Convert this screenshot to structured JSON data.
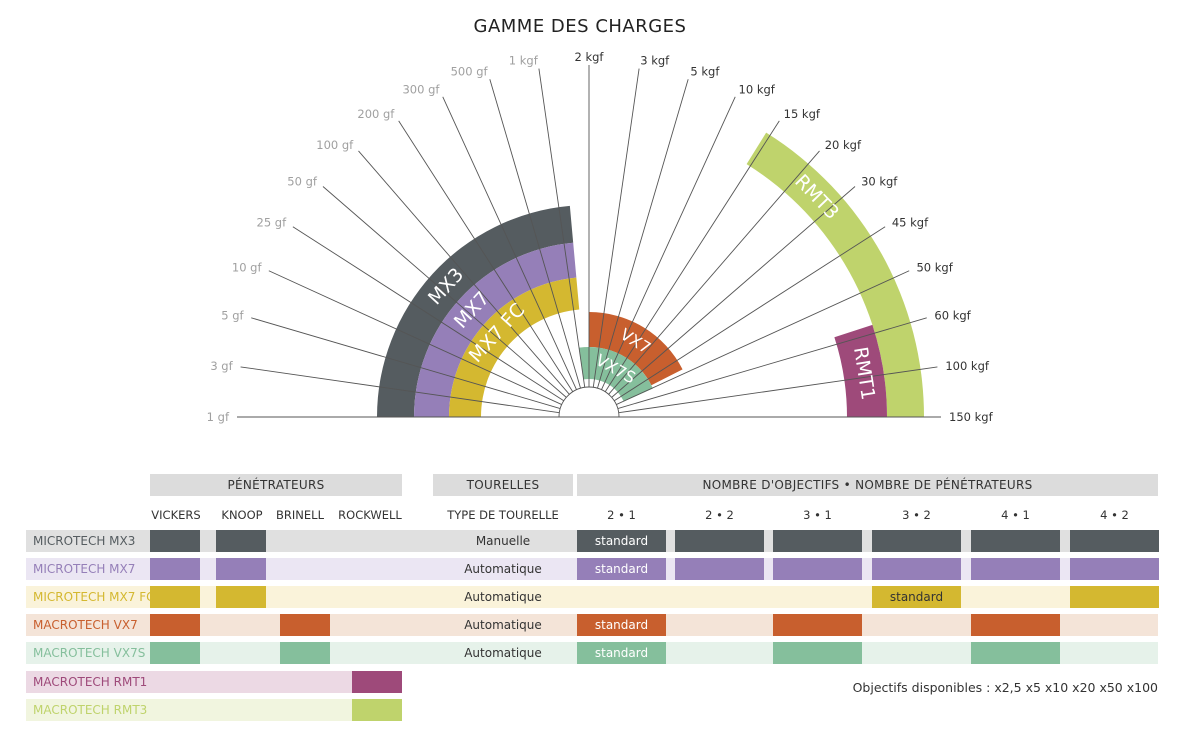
{
  "chart_data": {
    "type": "radial-range",
    "title": "GAMME DES CHARGES",
    "tick_labels": [
      "1 gf",
      "3 gf",
      "5 gf",
      "10 gf",
      "25 gf",
      "50 gf",
      "100 gf",
      "200 gf",
      "300 gf",
      "500 gf",
      "1 kgf",
      "2 kgf",
      "3 kgf",
      "5 kgf",
      "10 kgf",
      "15 kgf",
      "20 kgf",
      "30 kgf",
      "45 kgf",
      "50 kgf",
      "60 kgf",
      "100 kgf",
      "150 kgf"
    ],
    "series": [
      {
        "name": "MX3",
        "from": "1 gf",
        "to": "1 kgf",
        "color": "#555c60"
      },
      {
        "name": "MX7",
        "from": "1 gf",
        "to": "1 kgf",
        "color": "#957fb8"
      },
      {
        "name": "MX7 FC",
        "from": "1 gf",
        "to": "1 kgf",
        "color": "#d4b830"
      },
      {
        "name": "VX7",
        "from": "2 kgf",
        "to": "60 kgf",
        "color": "#c85f2e"
      },
      {
        "name": "VX7S",
        "from": "1 kgf",
        "to": "60 kgf",
        "color": "#85bf9c"
      },
      {
        "name": "RMT1",
        "from": "60 kgf",
        "to": "150 kgf",
        "color": "#9e4a7a"
      },
      {
        "name": "RMT3",
        "from": "15 kgf",
        "to": "150 kgf",
        "color": "#bfd36c"
      }
    ]
  },
  "table": {
    "group_penetrateurs": "PÉNÉTRATEURS",
    "group_tourelles": "TOURELLES",
    "group_objectifs": "NOMBRE D'OBJECTIFS • NOMBRE DE PÉNÉTRATEURS",
    "penetrateur_cols": [
      "VICKERS",
      "KNOOP",
      "BRINELL",
      "ROCKWELL"
    ],
    "tourelle_col": "TYPE DE TOURELLE",
    "config_cols": [
      "2 • 1",
      "2 • 2",
      "3 • 1",
      "3 • 2",
      "4 • 1",
      "4 • 2"
    ],
    "rows": [
      {
        "name": "MICROTECH MX3",
        "label_color": "#555c60",
        "bg": "#e0e0e0",
        "color": "#555c60",
        "pen": [
          true,
          true,
          false,
          false
        ],
        "tourelle": "Manuelle",
        "cfg": [
          "standard",
          "",
          "",
          "",
          "",
          ""
        ],
        "cfg_on": [
          true,
          true,
          true,
          true,
          true,
          true
        ]
      },
      {
        "name": "MICROTECH MX7",
        "label_color": "#957fb8",
        "bg": "#ebe6f3",
        "color": "#957fb8",
        "pen": [
          true,
          true,
          false,
          false
        ],
        "tourelle": "Automatique",
        "cfg": [
          "standard",
          "",
          "",
          "",
          "",
          ""
        ],
        "cfg_on": [
          true,
          true,
          true,
          true,
          true,
          true
        ]
      },
      {
        "name": "MICROTECH MX7 FC",
        "label_color": "#d4b830",
        "bg": "#faf3da",
        "color": "#d4b830",
        "pen": [
          true,
          true,
          false,
          false
        ],
        "tourelle": "Automatique",
        "cfg": [
          "",
          "",
          "",
          "standard",
          "",
          ""
        ],
        "cfg_on": [
          false,
          false,
          false,
          true,
          false,
          true
        ]
      },
      {
        "name": "MACROTECH VX7",
        "label_color": "#c85f2e",
        "bg": "#f4e4d8",
        "color": "#c85f2e",
        "pen": [
          true,
          false,
          true,
          false
        ],
        "tourelle": "Automatique",
        "cfg": [
          "standard",
          "",
          "",
          "",
          "",
          ""
        ],
        "cfg_on": [
          true,
          false,
          true,
          false,
          true,
          false
        ]
      },
      {
        "name": "MACROTECH VX7S",
        "label_color": "#85bf9c",
        "bg": "#e6f2ea",
        "color": "#85bf9c",
        "pen": [
          true,
          false,
          true,
          false
        ],
        "tourelle": "Automatique",
        "cfg": [
          "standard",
          "",
          "",
          "",
          "",
          ""
        ],
        "cfg_on": [
          true,
          false,
          true,
          false,
          true,
          false
        ]
      },
      {
        "name": "MACROTECH RMT1",
        "label_color": "#9e4a7a",
        "bg": "#ecd9e4",
        "color": "#9e4a7a",
        "pen": [
          false,
          false,
          false,
          true
        ],
        "tourelle": "",
        "cfg": [
          "",
          "",
          "",
          "",
          "",
          ""
        ],
        "cfg_on": [
          false,
          false,
          false,
          false,
          false,
          false
        ]
      },
      {
        "name": "MACROTECH RMT3",
        "label_color": "#bfd36c",
        "bg": "#f1f5df",
        "color": "#bfd36c",
        "pen": [
          false,
          false,
          false,
          true
        ],
        "tourelle": "",
        "cfg": [
          "",
          "",
          "",
          "",
          "",
          ""
        ],
        "cfg_on": [
          false,
          false,
          false,
          false,
          false,
          false
        ]
      }
    ],
    "note": "Objectifs disponibles : x2,5  x5  x10  x20  x50  x100"
  }
}
